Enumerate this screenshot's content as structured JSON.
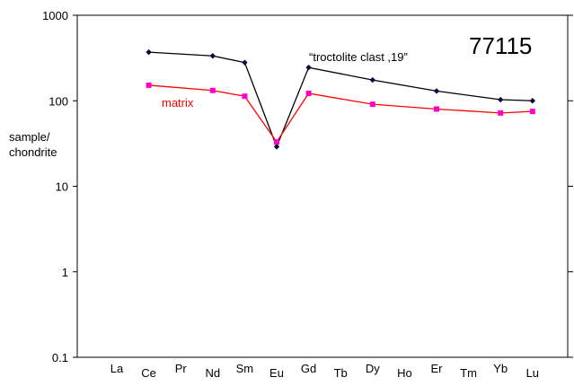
{
  "chart_data": {
    "type": "line",
    "title": "",
    "sample_id": "77115",
    "ylabel_lines": [
      "sample/",
      "chondrite"
    ],
    "xlabel": "",
    "y_scale": "log",
    "ylim": [
      0.1,
      1000
    ],
    "y_ticks": [
      0.1,
      1,
      10,
      100,
      1000
    ],
    "y_tick_labels": [
      "0.1",
      "1",
      "10",
      "100",
      "1000"
    ],
    "grid": false,
    "categories": [
      "La",
      "Ce",
      "Pr",
      "Nd",
      "Sm",
      "Eu",
      "Gd",
      "Tb",
      "Dy",
      "Ho",
      "Er",
      "Tm",
      "Yb",
      "Lu"
    ],
    "series": [
      {
        "name": "“troctolite clast ,19”",
        "color": "#000000",
        "marker_color": "#0a0a3c",
        "marker": "diamond",
        "points": [
          {
            "x": "Ce",
            "y": 370
          },
          {
            "x": "Nd",
            "y": 335
          },
          {
            "x": "Sm",
            "y": 280
          },
          {
            "x": "Eu",
            "y": 29
          },
          {
            "x": "Gd",
            "y": 245
          },
          {
            "x": "Dy",
            "y": 175
          },
          {
            "x": "Er",
            "y": 130
          },
          {
            "x": "Yb",
            "y": 103
          },
          {
            "x": "Lu",
            "y": 100
          }
        ]
      },
      {
        "name": "matrix",
        "color": "#ff0000",
        "marker_color": "#ff00c8",
        "marker": "square",
        "points": [
          {
            "x": "Ce",
            "y": 152
          },
          {
            "x": "Nd",
            "y": 132
          },
          {
            "x": "Sm",
            "y": 113
          },
          {
            "x": "Eu",
            "y": 33
          },
          {
            "x": "Gd",
            "y": 122
          },
          {
            "x": "Dy",
            "y": 91
          },
          {
            "x": "Er",
            "y": 80
          },
          {
            "x": "Yb",
            "y": 72
          },
          {
            "x": "Lu",
            "y": 75
          }
        ]
      }
    ],
    "annotations": [
      {
        "text": "“troctolite clast ,19”",
        "series": 0
      },
      {
        "text": "matrix",
        "series": 1
      }
    ]
  }
}
